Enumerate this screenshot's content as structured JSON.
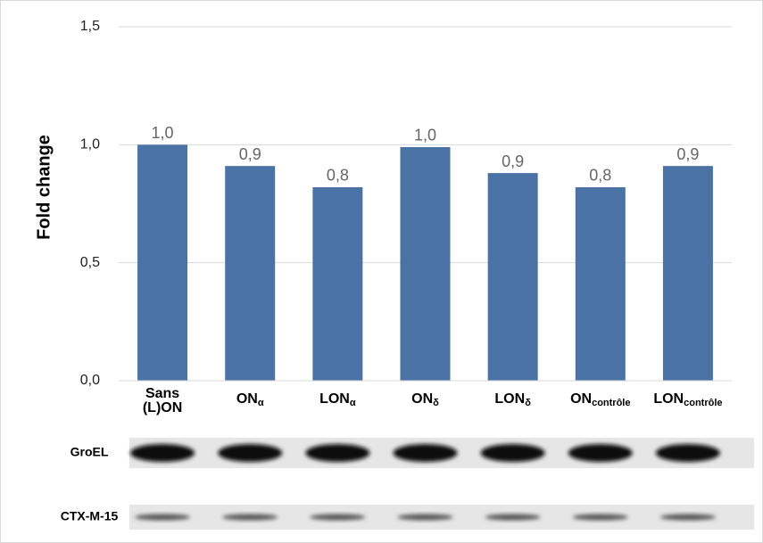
{
  "chart_data": {
    "type": "bar",
    "y_label": "Fold change",
    "categories": [
      {
        "lines": [
          "Sans",
          "(L)ON"
        ]
      },
      {
        "text": "ON",
        "sub": "α"
      },
      {
        "text": "LON",
        "sub": "α"
      },
      {
        "text": "ON",
        "sub": "δ"
      },
      {
        "text": "LON",
        "sub": "δ"
      },
      {
        "text": "ON",
        "sub": "contrôle"
      },
      {
        "text": "LON",
        "sub": "contrôle"
      }
    ],
    "values": [
      1.0,
      0.91,
      0.82,
      0.99,
      0.88,
      0.82,
      0.91
    ],
    "value_labels": [
      "1,0",
      "0,9",
      "0,8",
      "1,0",
      "0,9",
      "0,8",
      "0,9"
    ],
    "color": "#4a72a4",
    "ylim": [
      0,
      1.5
    ],
    "yticks": [
      {
        "value": 0,
        "label": "0,0"
      },
      {
        "value": 0.5,
        "label": "0,5"
      },
      {
        "value": 1.0,
        "label": "1,0"
      },
      {
        "value": 1.5,
        "label": "1,5"
      }
    ],
    "grid": true,
    "blot_labels": [
      "GroEL",
      "CTX-M-15"
    ]
  }
}
